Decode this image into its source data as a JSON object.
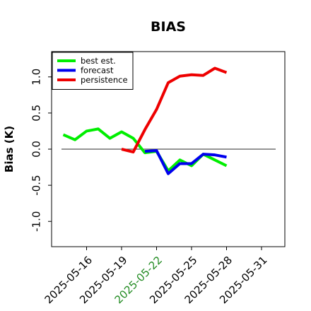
{
  "chart_data": {
    "type": "line",
    "title": "BIAS",
    "xlabel": "",
    "ylabel": "Bias (K)",
    "xlim": [
      "2025-05-13",
      "2025-06-02"
    ],
    "ylim": [
      -1.35,
      1.35
    ],
    "yticks": [
      -1.0,
      -0.5,
      0.0,
      0.5,
      1.0
    ],
    "ytick_labels": [
      "-1.0",
      "-0.5",
      "0.0",
      "0.5",
      "1.0"
    ],
    "xticks": [
      "2025-05-16",
      "2025-05-19",
      "2025-05-22",
      "2025-05-25",
      "2025-05-28",
      "2025-05-31"
    ],
    "xtick_labels": [
      "2025-05-16",
      "2025-05-19",
      "2025-05-22",
      "2025-05-25",
      "2025-05-28",
      "2025-05-31"
    ],
    "highlight_tick": "2025-05-22",
    "highlight_color": "#228b22",
    "reference_line": 0.0,
    "grid": false,
    "legend_position": "upper-left",
    "series": [
      {
        "name": "best est.",
        "color": "#00ee00",
        "x": [
          "2025-05-14",
          "2025-05-15",
          "2025-05-16",
          "2025-05-17",
          "2025-05-18",
          "2025-05-19",
          "2025-05-20",
          "2025-05-21",
          "2025-05-22",
          "2025-05-23",
          "2025-05-24",
          "2025-05-25",
          "2025-05-26",
          "2025-05-27",
          "2025-05-28",
          "2025-05-29"
        ],
        "values": [
          0.2,
          0.13,
          0.25,
          0.28,
          0.15,
          0.24,
          0.15,
          -0.05,
          -0.03,
          -0.3,
          -0.15,
          -0.23,
          -0.07,
          -0.15,
          -0.23,
          null
        ]
      },
      {
        "name": "forecast",
        "color": "#0000ee",
        "x": [
          "2025-05-21",
          "2025-05-22",
          "2025-05-23",
          "2025-05-24",
          "2025-05-25",
          "2025-05-26",
          "2025-05-27",
          "2025-05-28",
          "2025-05-29"
        ],
        "values": [
          -0.03,
          -0.02,
          -0.34,
          -0.2,
          -0.2,
          -0.07,
          -0.08,
          -0.11,
          null
        ]
      },
      {
        "name": "persistence",
        "color": "#ee0000",
        "x": [
          "2025-05-19",
          "2025-05-20",
          "2025-05-21",
          "2025-05-22",
          "2025-05-23",
          "2025-05-24",
          "2025-05-25",
          "2025-05-26",
          "2025-05-27",
          "2025-05-28",
          "2025-05-29"
        ],
        "values": [
          0.0,
          -0.04,
          0.27,
          0.55,
          0.92,
          1.01,
          1.03,
          1.02,
          1.12,
          1.06,
          null
        ]
      }
    ]
  }
}
